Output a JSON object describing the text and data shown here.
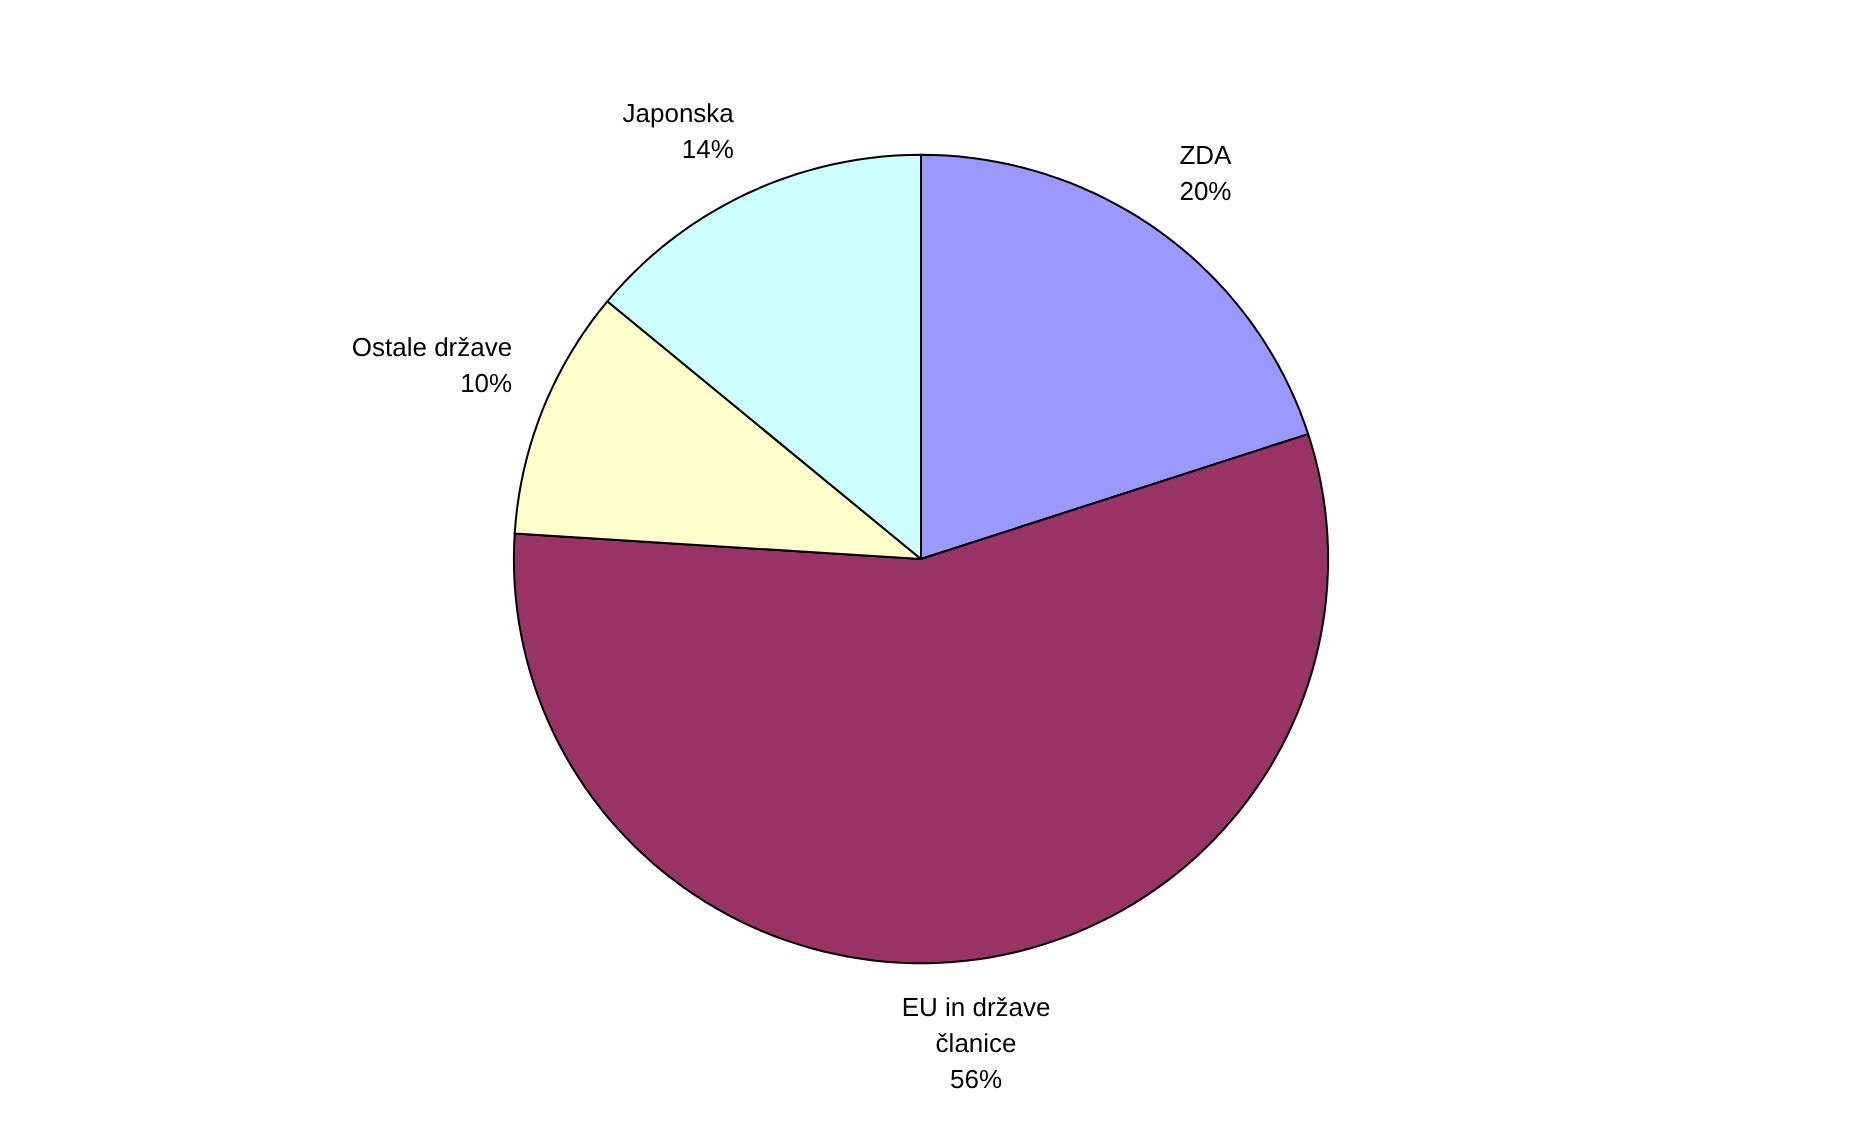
{
  "chart_data": {
    "type": "pie",
    "categories": [
      "ZDA",
      "EU in države članice",
      "Ostale države",
      "Japonska"
    ],
    "values": [
      20,
      56,
      10,
      14
    ],
    "colors": [
      "#9999ff",
      "#993366",
      "#ffffcc",
      "#ccffff"
    ],
    "value_labels": [
      "20%",
      "56%",
      "10%",
      "14%"
    ]
  }
}
